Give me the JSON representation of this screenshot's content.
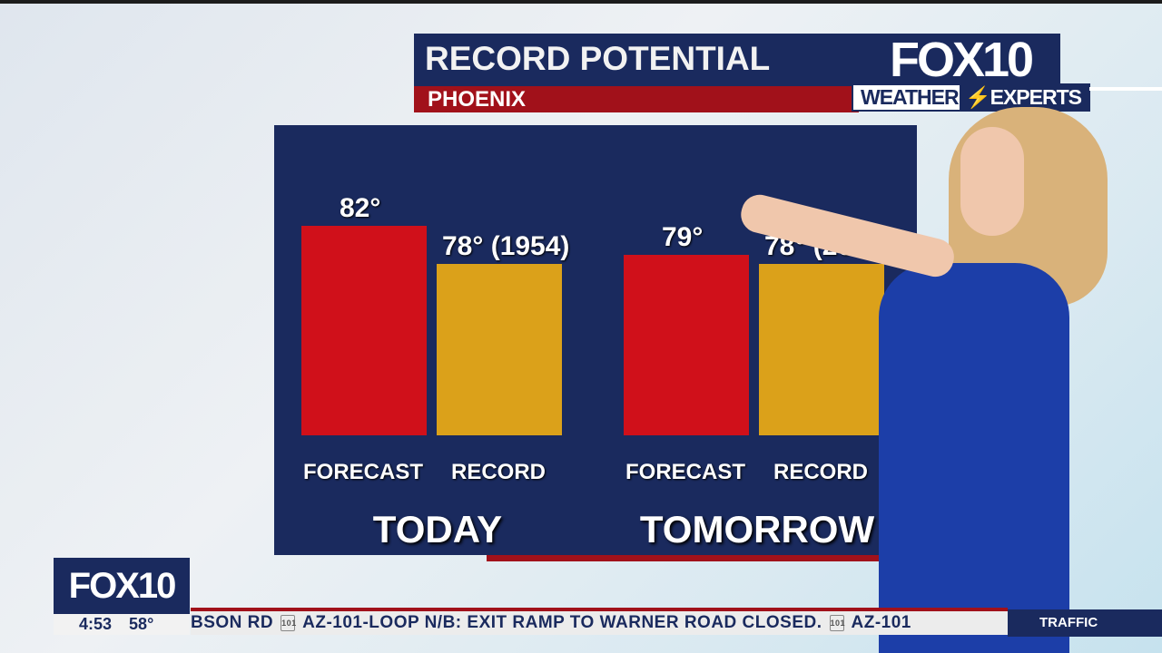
{
  "header": {
    "title": "RECORD POTENTIAL",
    "location": "PHOENIX"
  },
  "logo": {
    "station": "FOX 10",
    "brand_left": "WEATHER",
    "brand_right": "EXPERTS"
  },
  "colors": {
    "navy": "#1a2a5e",
    "red_bar": "#d0101a",
    "gold_bar": "#dba11a",
    "accent_red": "#a1111a"
  },
  "chart_data": {
    "type": "bar",
    "groups": [
      {
        "label": "TODAY",
        "bars": [
          {
            "category": "FORECAST",
            "value": 82,
            "label": "82°"
          },
          {
            "category": "RECORD",
            "value": 78,
            "label": "78° (1954)"
          }
        ]
      },
      {
        "label": "TOMORROW",
        "bars": [
          {
            "category": "FORECAST",
            "value": 79,
            "label": "79°"
          },
          {
            "category": "RECORD",
            "value": 78,
            "label": "78° (2023)"
          }
        ]
      }
    ],
    "units": "°F",
    "grid": false
  },
  "bug": {
    "logo": "FOX10",
    "time": "4:53",
    "temp": "58°"
  },
  "ticker": {
    "segments": [
      "BSON RD",
      "AZ-101-LOOP N/B: EXIT RAMP TO WARNER ROAD CLOSED.",
      "AZ-101"
    ],
    "shield": "101",
    "category": "TRAFFIC"
  }
}
